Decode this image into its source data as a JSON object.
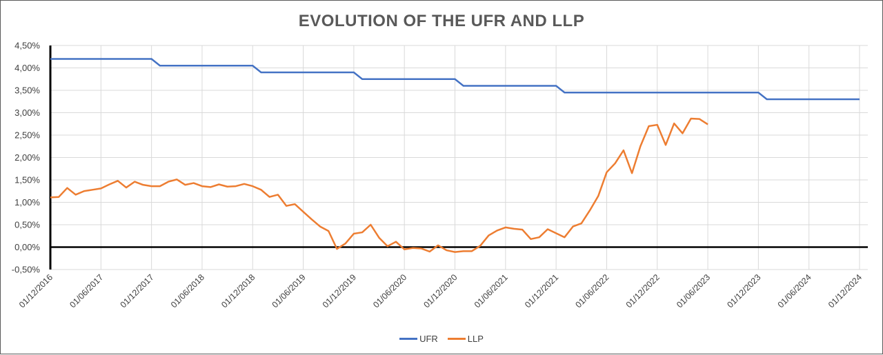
{
  "chart": {
    "title": "EVOLUTION OF THE UFR AND LLP",
    "legend": [
      {
        "name": "UFR",
        "color": "#4472C4"
      },
      {
        "name": "LLP",
        "color": "#ED7D31"
      }
    ],
    "y_ticks": [
      "4,50%",
      "4,00%",
      "3,50%",
      "3,00%",
      "2,50%",
      "2,00%",
      "1,50%",
      "1,00%",
      "0,50%",
      "0,00%",
      "-0,50%"
    ],
    "x_ticks": [
      "01/12/2016",
      "01/06/2017",
      "01/12/2017",
      "01/06/2018",
      "01/12/2018",
      "01/06/2019",
      "01/12/2019",
      "01/06/2020",
      "01/12/2020",
      "01/06/2021",
      "01/12/2021",
      "01/06/2022",
      "01/12/2022",
      "01/06/2023",
      "01/12/2023",
      "01/06/2024",
      "01/12/2024"
    ]
  },
  "chart_data": {
    "type": "line",
    "title": "EVOLUTION OF THE UFR AND LLP",
    "xlabel": "",
    "ylabel": "",
    "ylim": [
      -0.5,
      4.5
    ],
    "y_tick_step": 0.5,
    "grid": true,
    "legend_position": "bottom",
    "x_start": "2016-12",
    "x_end": "2024-12",
    "x_frequency": "monthly",
    "series": [
      {
        "name": "UFR",
        "color": "#4472C4",
        "unit": "%",
        "steps": [
          {
            "from": "2016-12",
            "to": "2017-12",
            "value": 4.2
          },
          {
            "from": "2018-01",
            "to": "2018-12",
            "value": 4.05
          },
          {
            "from": "2019-01",
            "to": "2019-12",
            "value": 3.9
          },
          {
            "from": "2020-01",
            "to": "2020-12",
            "value": 3.75
          },
          {
            "from": "2021-01",
            "to": "2021-12",
            "value": 3.6
          },
          {
            "from": "2022-01",
            "to": "2023-12",
            "value": 3.45
          },
          {
            "from": "2024-01",
            "to": "2024-12",
            "value": 3.3
          }
        ]
      },
      {
        "name": "LLP",
        "color": "#ED7D31",
        "unit": "%",
        "start": "2016-12",
        "values": [
          1.11,
          1.12,
          1.32,
          1.17,
          1.25,
          1.28,
          1.31,
          1.4,
          1.48,
          1.33,
          1.46,
          1.39,
          1.36,
          1.36,
          1.46,
          1.51,
          1.39,
          1.43,
          1.36,
          1.34,
          1.4,
          1.35,
          1.36,
          1.41,
          1.36,
          1.28,
          1.12,
          1.17,
          0.92,
          0.96,
          0.79,
          0.62,
          0.46,
          0.36,
          -0.04,
          0.08,
          0.3,
          0.33,
          0.5,
          0.21,
          0.02,
          0.12,
          -0.05,
          -0.02,
          -0.03,
          -0.1,
          0.04,
          -0.07,
          -0.11,
          -0.09,
          -0.09,
          0.03,
          0.26,
          0.37,
          0.44,
          0.41,
          0.39,
          0.18,
          0.22,
          0.4,
          0.31,
          0.22,
          0.46,
          0.53,
          0.82,
          1.14,
          1.67,
          1.87,
          2.16,
          1.65,
          2.25,
          2.7,
          2.73,
          2.28,
          2.76,
          2.54,
          2.87,
          2.86,
          2.74
        ]
      }
    ]
  }
}
